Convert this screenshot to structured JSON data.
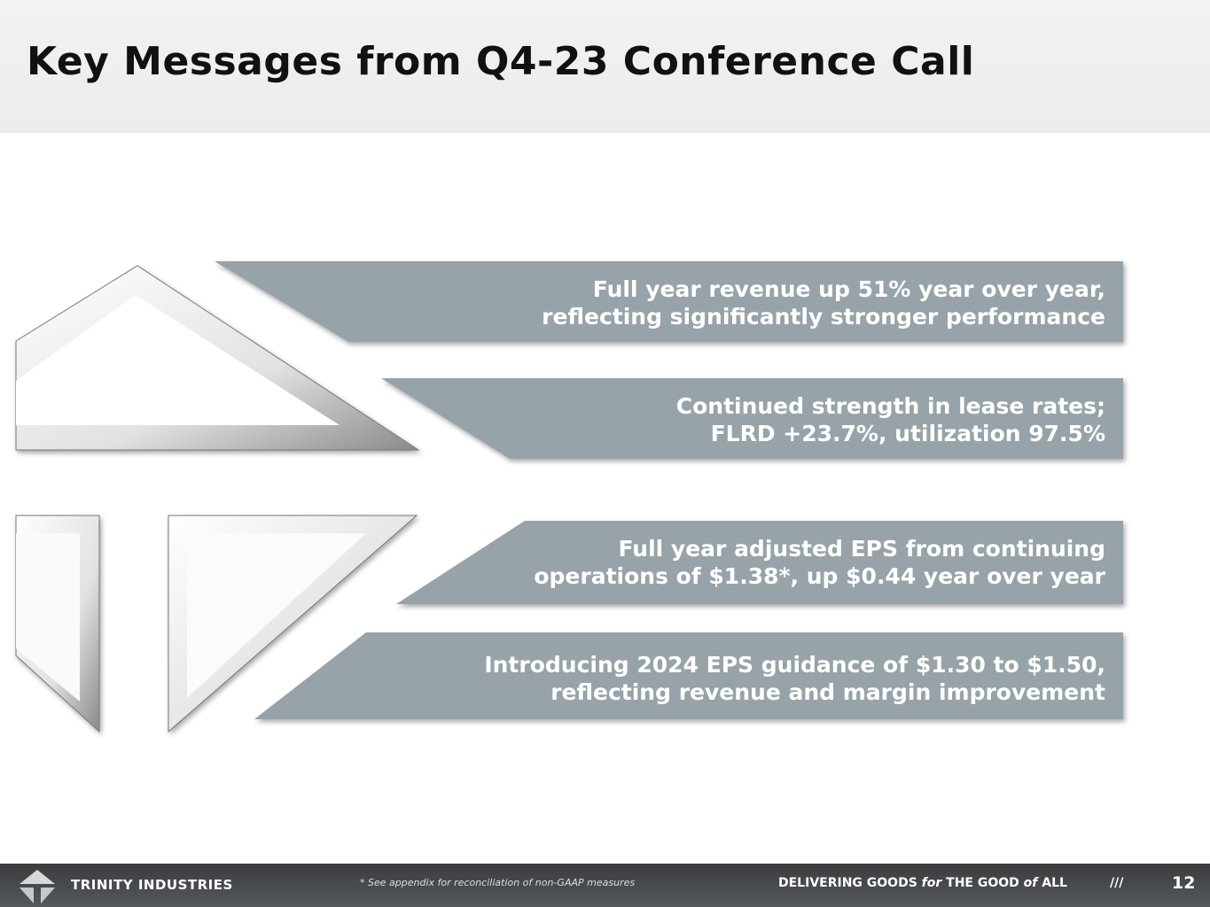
{
  "header": {
    "title": "Key Messages from Q4-23 Conference Call"
  },
  "messages": [
    {
      "line1": "Full year revenue up 51% year over year,",
      "line2": "reflecting significantly stronger performance"
    },
    {
      "line1": "Continued strength in lease rates;",
      "line2": "FLRD +23.7%, utilization 97.5%"
    },
    {
      "line1": "Full year adjusted EPS from continuing",
      "line2": "operations of $1.38*, up $0.44 year over year"
    },
    {
      "line1": "Introducing 2024 EPS guidance of $1.30 to $1.50,",
      "line2": "reflecting revenue and margin improvement"
    }
  ],
  "footer": {
    "brand": "TRINITY INDUSTRIES",
    "note": "* See appendix for reconciliation of non-GAAP measures",
    "tagline_1": "DELIVERING GOODS ",
    "tagline_for": "for",
    "tagline_2": " THE GOOD ",
    "tagline_of": "of",
    "tagline_3": " ALL",
    "slashes": "///",
    "page_number": "12"
  },
  "colors": {
    "banner": "#97a3a9",
    "footer": "#45484b"
  }
}
